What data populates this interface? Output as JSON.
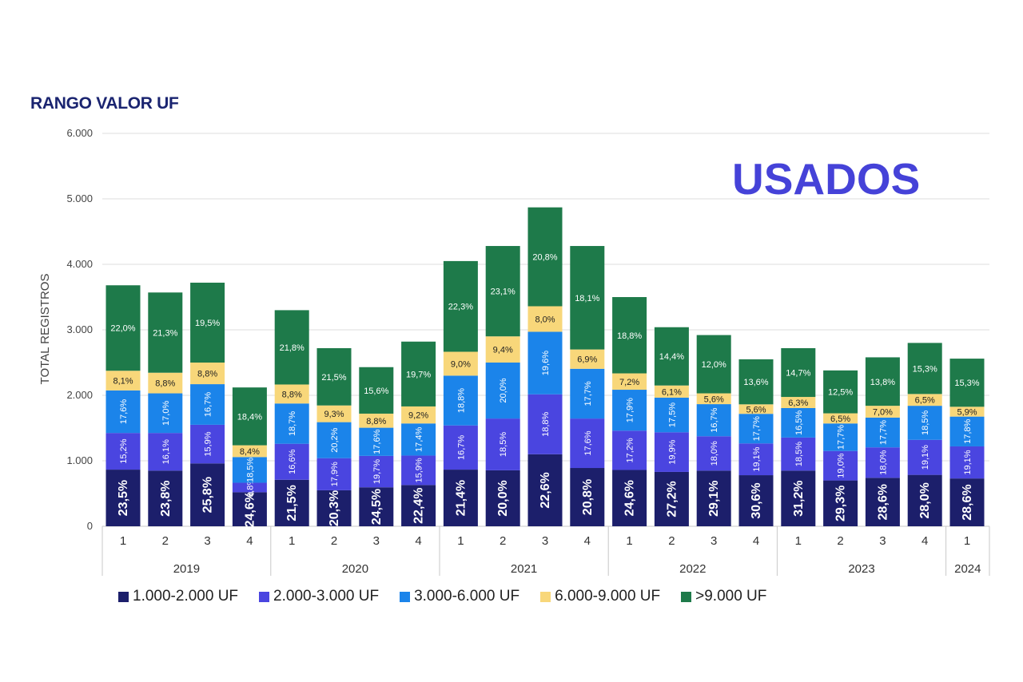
{
  "title": "RANGO VALOR UF",
  "badge": "USADOS",
  "chart_data": {
    "type": "bar",
    "stacked": true,
    "ylabel": "TOTAL REGISTROS",
    "ylim": [
      0,
      6000
    ],
    "yticks": [
      {
        "value": 0,
        "label": "0"
      },
      {
        "value": 1000,
        "label": "1.000"
      },
      {
        "value": 2000,
        "label": "2.000"
      },
      {
        "value": 3000,
        "label": "3.000"
      },
      {
        "value": 4000,
        "label": "4.000"
      },
      {
        "value": 5000,
        "label": "5.000"
      },
      {
        "value": 6000,
        "label": "6.000"
      }
    ],
    "grid": true,
    "legend_position": "bottom",
    "groups": [
      {
        "label": "2019",
        "quarters": [
          "1",
          "2",
          "3",
          "4"
        ]
      },
      {
        "label": "2020",
        "quarters": [
          "1",
          "2",
          "3",
          "4"
        ]
      },
      {
        "label": "2021",
        "quarters": [
          "1",
          "2",
          "3",
          "4"
        ]
      },
      {
        "label": "2022",
        "quarters": [
          "1",
          "2",
          "3",
          "4"
        ]
      },
      {
        "label": "2023",
        "quarters": [
          "1",
          "2",
          "3",
          "4"
        ]
      },
      {
        "label": "2024",
        "quarters": [
          "1"
        ]
      }
    ],
    "totals": [
      3680,
      3570,
      3720,
      2120,
      3300,
      2720,
      2430,
      2820,
      4050,
      4280,
      4870,
      4280,
      3500,
      3040,
      2920,
      2550,
      2720,
      2380,
      2580,
      2800,
      2560
    ],
    "series": [
      {
        "name": "1.000-2.000 UF",
        "color": "#1c1f6b",
        "values": [
          865,
          850,
          960,
          520,
          710,
          550,
          595,
          630,
          865,
          855,
          1100,
          890,
          860,
          830,
          850,
          780,
          850,
          700,
          740,
          785,
          730
        ],
        "labels": [
          "23,5%",
          "23,8%",
          "25,8%",
          "24,6%",
          "21,5%",
          "20,3%",
          "24,5%",
          "22,4%",
          "21,4%",
          "20,0%",
          "22,6%",
          "20,8%",
          "24,6%",
          "27,2%",
          "29,1%",
          "30,6%",
          "31,2%",
          "29,3%",
          "28,6%",
          "28,0%",
          "28,6%"
        ]
      },
      {
        "name": "2.000-3.000 UF",
        "color": "#4a45e0",
        "values": [
          560,
          575,
          590,
          145,
          550,
          490,
          480,
          450,
          675,
          790,
          915,
          755,
          600,
          605,
          525,
          485,
          505,
          450,
          465,
          535,
          490
        ],
        "labels": [
          "15,2%",
          "16,1%",
          "15,9%",
          "6,8%",
          "16,6%",
          "17,9%",
          "19,7%",
          "15,9%",
          "16,7%",
          "18,5%",
          "18,8%",
          "17,6%",
          "17,2%",
          "19,9%",
          "18,0%",
          "19,1%",
          "18,5%",
          "19,0%",
          "18,0%",
          "19,1%",
          "19,1%"
        ]
      },
      {
        "name": "3.000-6.000 UF",
        "color": "#1b84ea",
        "values": [
          650,
          605,
          620,
          392,
          615,
          550,
          430,
          490,
          760,
          855,
          955,
          760,
          625,
          530,
          490,
          452,
          450,
          420,
          455,
          520,
          455
        ],
        "labels": [
          "17,6%",
          "17,0%",
          "16,7%",
          "18,5%",
          "18,7%",
          "20,2%",
          "17,6%",
          "17,4%",
          "18,8%",
          "20,0%",
          "19,6%",
          "17,7%",
          "17,9%",
          "17,5%",
          "16,7%",
          "17,7%",
          "16,5%",
          "17,7%",
          "17,7%",
          "18,5%",
          "17,8%"
        ]
      },
      {
        "name": "6.000-9.000 UF",
        "color": "#f8d77a",
        "values": [
          300,
          315,
          330,
          180,
          290,
          255,
          215,
          260,
          365,
          400,
          390,
          295,
          250,
          185,
          165,
          145,
          170,
          155,
          180,
          180,
          150
        ],
        "labels": [
          "8,1%",
          "8,8%",
          "8,8%",
          "8,4%",
          "8,8%",
          "9,3%",
          "8,8%",
          "9,2%",
          "9,0%",
          "9,4%",
          "8,0%",
          "6,9%",
          "7,2%",
          "6,1%",
          "5,6%",
          "5,6%",
          "6,3%",
          "6,5%",
          "7,0%",
          "6,5%",
          "5,9%"
        ]
      },
      {
        "name": ">9.000 UF",
        "color": "#1e7a4a",
        "values": [
          1305,
          1225,
          1220,
          883,
          1135,
          875,
          710,
          990,
          1385,
          1380,
          1510,
          1580,
          1165,
          890,
          890,
          688,
          745,
          655,
          740,
          780,
          735
        ],
        "labels": [
          "22,0%",
          "21,3%",
          "19,5%",
          "18,4%",
          "21,8%",
          "21,5%",
          "15,6%",
          "19,7%",
          "22,3%",
          "23,1%",
          "20,8%",
          "18,1%",
          "18,8%",
          "14,4%",
          "12,0%",
          "13,6%",
          "14,7%",
          "12,5%",
          "13,8%",
          "15,3%",
          "15,3%"
        ]
      }
    ]
  }
}
